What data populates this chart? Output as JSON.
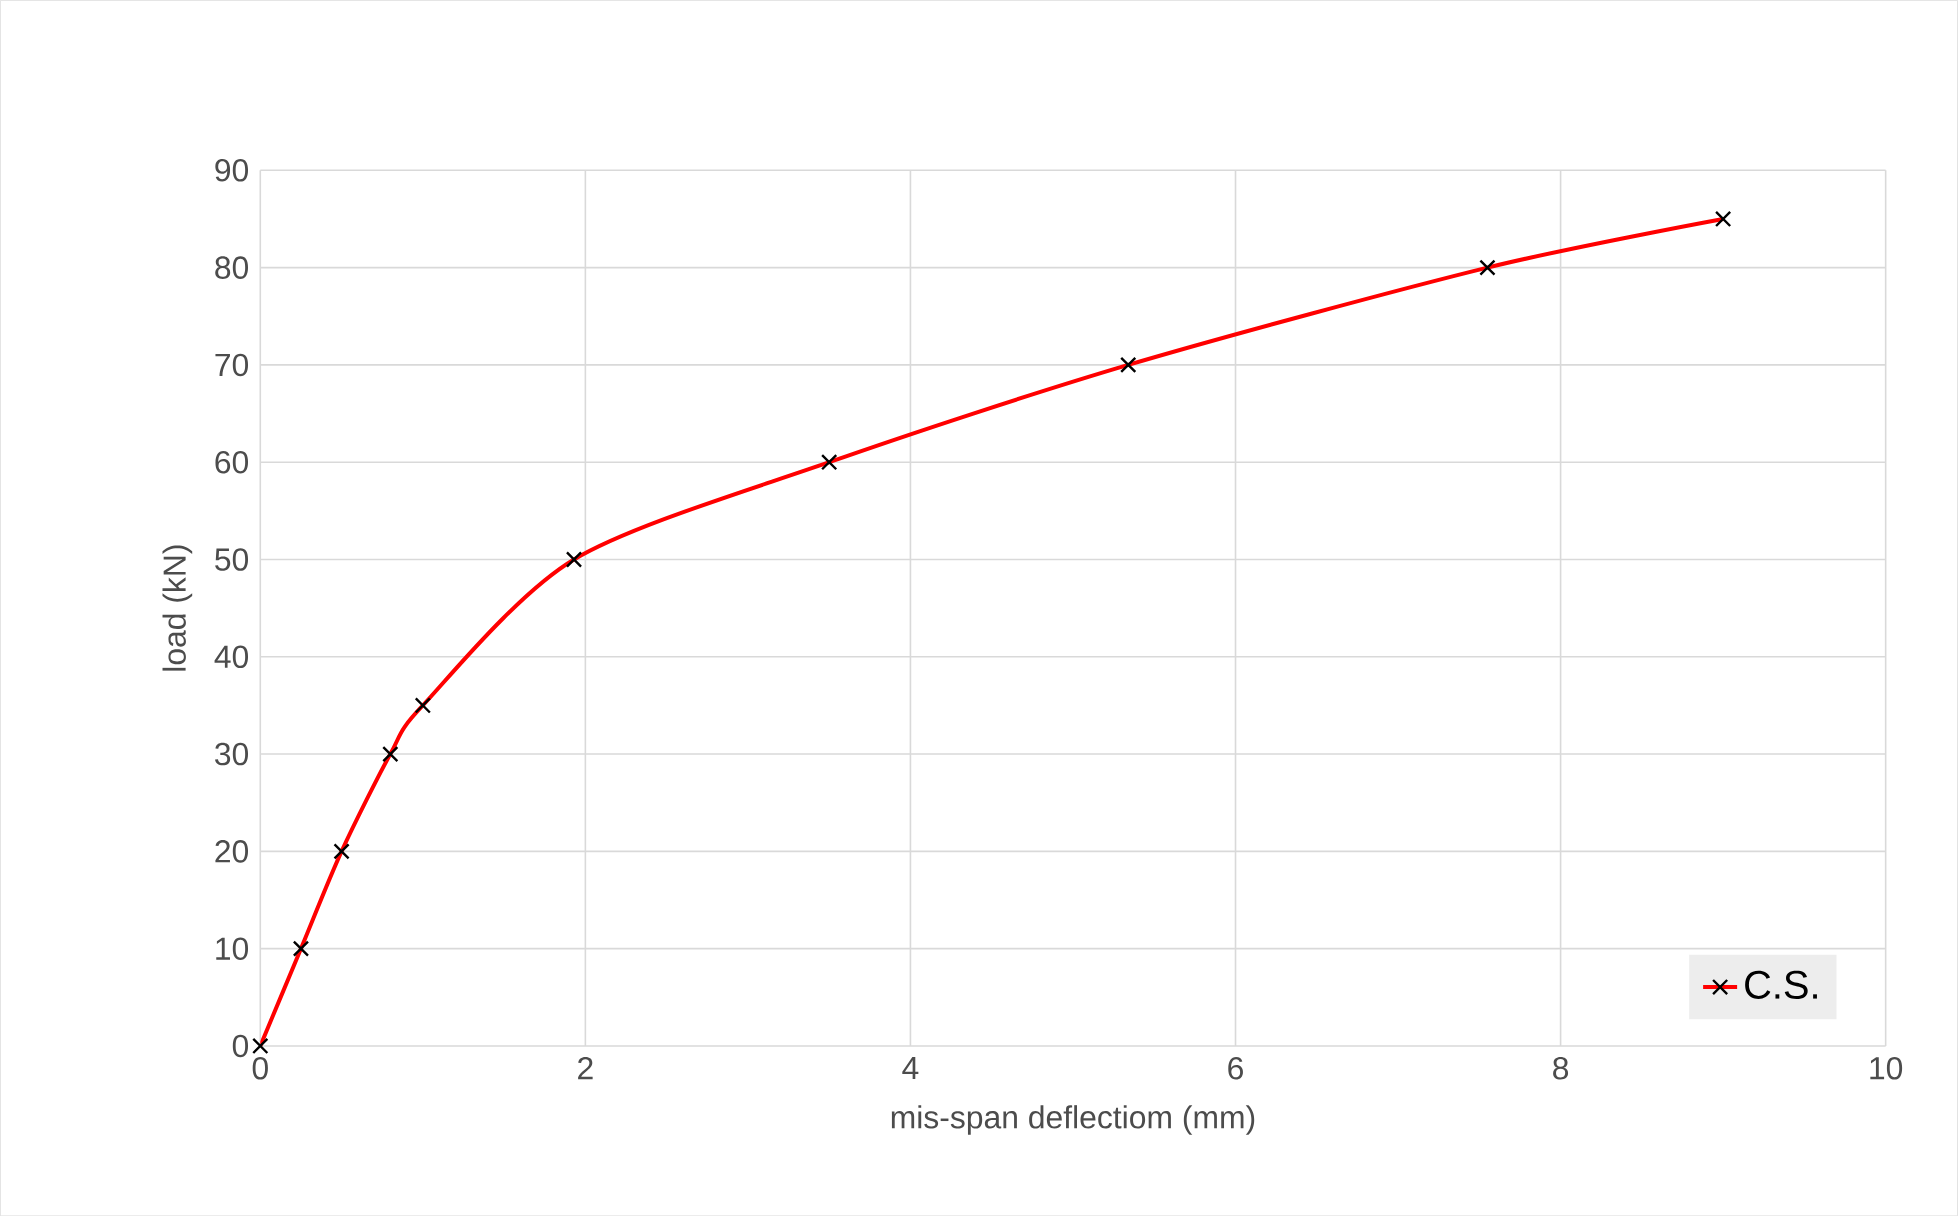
{
  "chart_data": {
    "type": "line",
    "xlabel": "mis-span deflectiom (mm)",
    "ylabel": "load (kN)",
    "series": [
      {
        "name": "C.S.",
        "color": "#ff0000",
        "x": [
          0,
          0.25,
          0.5,
          0.8,
          1.0,
          1.93,
          3.5,
          5.34,
          7.55,
          9.0
        ],
        "values": [
          0,
          10,
          20,
          30,
          35,
          50,
          60,
          70,
          80,
          85
        ]
      }
    ],
    "xlim": [
      0,
      10
    ],
    "ylim": [
      0,
      90
    ],
    "xticks": [
      0,
      2,
      4,
      6,
      8,
      10
    ],
    "yticks": [
      0,
      10,
      20,
      30,
      40,
      50,
      60,
      70,
      80,
      90
    ],
    "grid": true,
    "legend": "bottom right",
    "marker": "cross",
    "line_style": "solid"
  }
}
